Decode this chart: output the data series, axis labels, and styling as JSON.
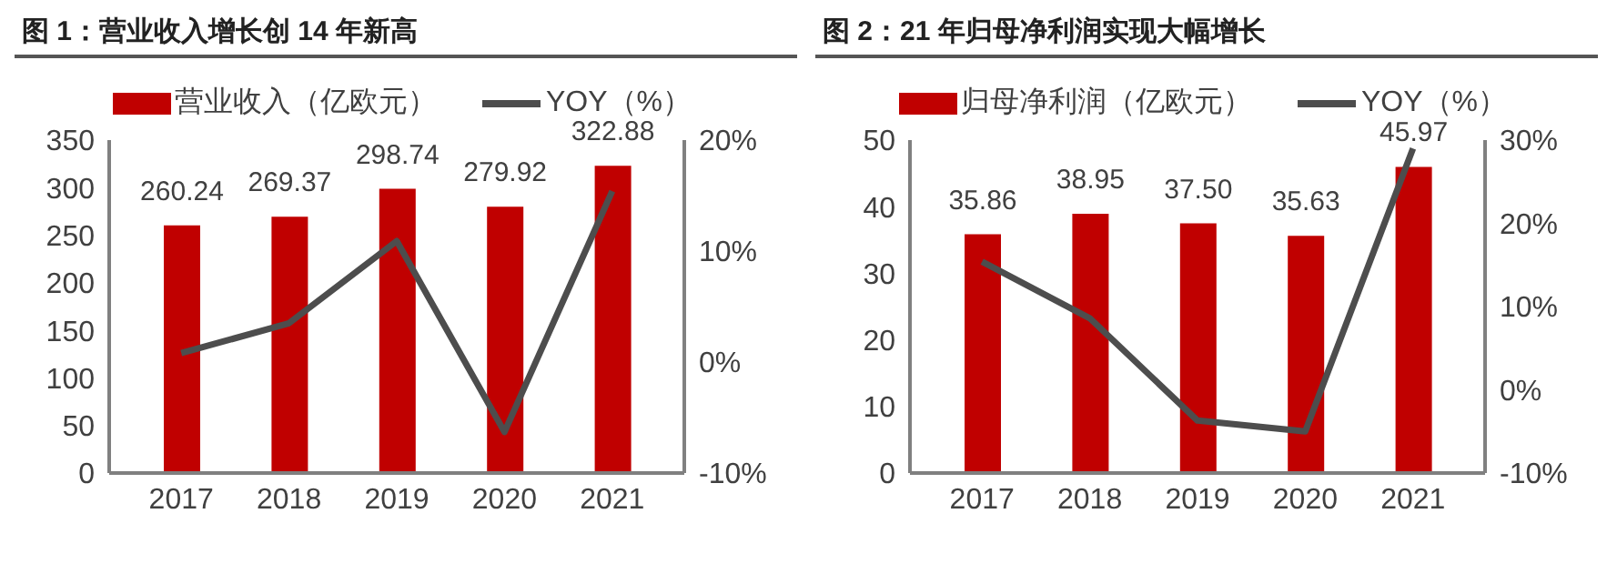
{
  "chart_data": [
    {
      "type": "bar",
      "title": "图 1：营业收入增长创 14 年新高",
      "categories": [
        "2017",
        "2018",
        "2019",
        "2020",
        "2021"
      ],
      "legend": "top",
      "grid": false,
      "series": [
        {
          "name": "营业收入（亿欧元）",
          "color": "#c00000",
          "values": [
            260.24,
            269.37,
            298.74,
            279.92,
            322.88
          ],
          "value_labels": [
            "260.24",
            "269.37",
            "298.74",
            "279.92",
            "322.88"
          ]
        },
        {
          "name": "YOY（%）",
          "type": "line",
          "axis": "y2",
          "color": "#4d4d4d",
          "marker": "none",
          "values": [
            0.8,
            3.5,
            10.9,
            -6.3,
            15.4
          ]
        }
      ],
      "ylim": [
        0,
        350
      ],
      "yticks": [
        0,
        50,
        100,
        150,
        200,
        250,
        300,
        350
      ],
      "y2lim": [
        -10,
        20
      ],
      "y2ticks": [
        {
          "value": -10,
          "label": "-10%"
        },
        {
          "value": 0,
          "label": "0%"
        },
        {
          "value": 10,
          "label": "10%"
        },
        {
          "value": 20,
          "label": "20%"
        }
      ]
    },
    {
      "type": "bar",
      "title": "图 2：21 年归母净利润实现大幅增长",
      "categories": [
        "2017",
        "2018",
        "2019",
        "2020",
        "2021"
      ],
      "legend": "top",
      "grid": false,
      "series": [
        {
          "name": "归母净利润（亿欧元）",
          "color": "#c00000",
          "values": [
            35.86,
            38.95,
            37.5,
            35.63,
            45.97
          ],
          "value_labels": [
            "35.86",
            "38.95",
            "37.50",
            "35.63",
            "45.97"
          ]
        },
        {
          "name": "YOY（%）",
          "type": "line",
          "axis": "y2",
          "color": "#4d4d4d",
          "marker": "none",
          "values": [
            15.4,
            8.6,
            -3.7,
            -5.0,
            29.0
          ]
        }
      ],
      "ylim": [
        0,
        50
      ],
      "yticks": [
        0,
        10,
        20,
        30,
        40,
        50
      ],
      "y2lim": [
        -10,
        30
      ],
      "y2ticks": [
        {
          "value": -10,
          "label": "-10%"
        },
        {
          "value": 0,
          "label": "0%"
        },
        {
          "value": 10,
          "label": "10%"
        },
        {
          "value": 20,
          "label": "20%"
        },
        {
          "value": 30,
          "label": "30%"
        }
      ]
    }
  ]
}
